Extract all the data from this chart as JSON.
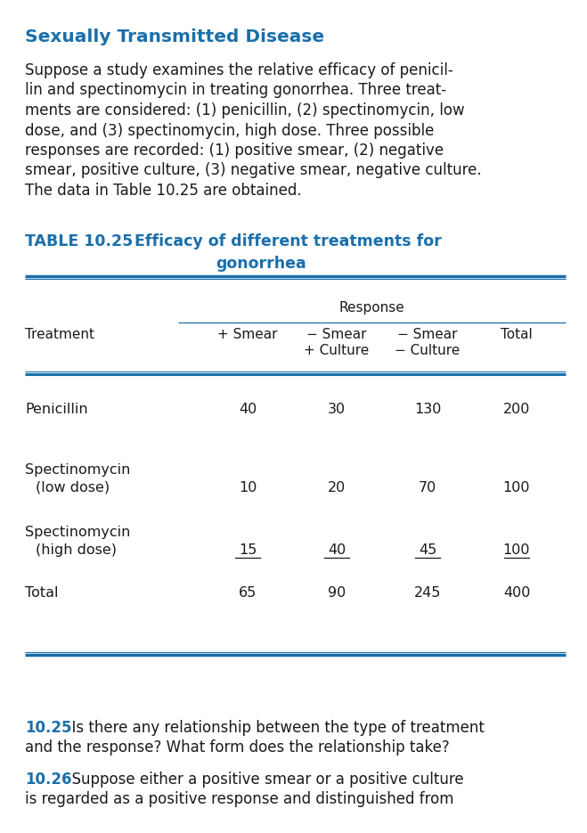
{
  "title_section": "Sexually Transmitted Disease",
  "title_color": "#1A6FAA",
  "body_lines": [
    "Suppose a study examines the relative efficacy of penicil-",
    "lin and spectinomycin in treating gonorrhea. Three treat-",
    "ments are considered: (1) penicillin, (2) spectinomycin, low",
    "dose, and (3) spectinomycin, high dose. Three possible",
    "responses are recorded: (1) positive smear, (2) negative",
    "smear, positive culture, (3) negative smear, negative culture.",
    "The data in Table 10.25 are obtained."
  ],
  "table_prefix": "TABLE 10.25",
  "table_title1": "   Efficacy of different treatments for",
  "table_title2": "gonorrhea",
  "table_title_color": "#1A6FAA",
  "response_label": "Response",
  "col_header_row1": [
    "− Smear",
    "− Smear"
  ],
  "col_header_row2": [
    "+ Culture",
    "− Culture"
  ],
  "treat_col_header": "Treatment",
  "smear_col_header": "+ Smear",
  "total_col_header": "Total",
  "data_rows": [
    [
      "Penicillin",
      "",
      "40",
      "30",
      "130",
      "200"
    ],
    [
      "Spectinomycin",
      "(low dose)",
      "10",
      "20",
      "70",
      "100"
    ],
    [
      "Spectinomycin",
      "(high dose)",
      "15",
      "40",
      "45",
      "100"
    ],
    [
      "Total",
      "",
      "65",
      "90",
      "245",
      "400"
    ]
  ],
  "q1_num": "10.25",
  "q1_line1": "  Is there any relationship between the type of treatment",
  "q1_line2": "and the response? What form does the relationship take?",
  "q2_num": "10.26",
  "q2_line1": "  Suppose either a positive smear or a positive culture",
  "q2_line2": "is regarded as a positive response and distinguished from",
  "q_color": "#1A6FAA",
  "bg_color": "#FFFFFF",
  "text_color": "#1a1a1a",
  "line_color": "#1A6FAA"
}
